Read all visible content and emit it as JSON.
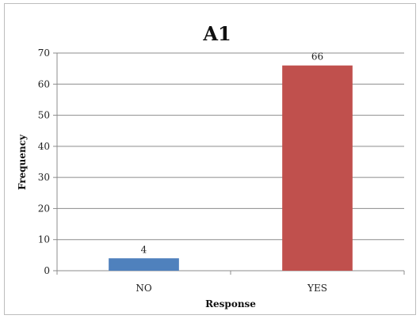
{
  "chart_data": {
    "type": "bar",
    "title": "A1",
    "xlabel": "Response",
    "ylabel": "Frequency",
    "categories": [
      "NO",
      "YES"
    ],
    "values": [
      4,
      66
    ],
    "data_labels": [
      "4",
      "66"
    ],
    "bar_colors": [
      "#4f81bd",
      "#c0504d"
    ],
    "ylim": [
      0,
      70
    ],
    "yticks": [
      0,
      10,
      20,
      30,
      40,
      50,
      60,
      70
    ],
    "ytick_labels": [
      "0",
      "10",
      "20",
      "30",
      "40",
      "50",
      "60",
      "70"
    ],
    "grid": true,
    "legend": "none"
  }
}
